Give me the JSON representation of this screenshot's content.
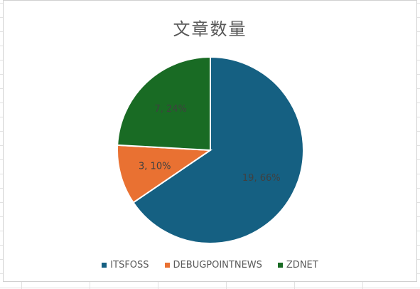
{
  "chart_data": {
    "type": "pie",
    "title": "文章数量",
    "categories": [
      "ITSFOSS",
      "DEBUGPOINTNEWS",
      "ZDNET"
    ],
    "values": [
      19,
      3,
      7
    ],
    "percent_labels": [
      "19, 66%",
      "3, 10%",
      "7, 24%"
    ],
    "colors": [
      "#156082",
      "#E97132",
      "#196B24"
    ],
    "legend_position": "bottom",
    "start_angle": "12 o'clock, clockwise"
  }
}
